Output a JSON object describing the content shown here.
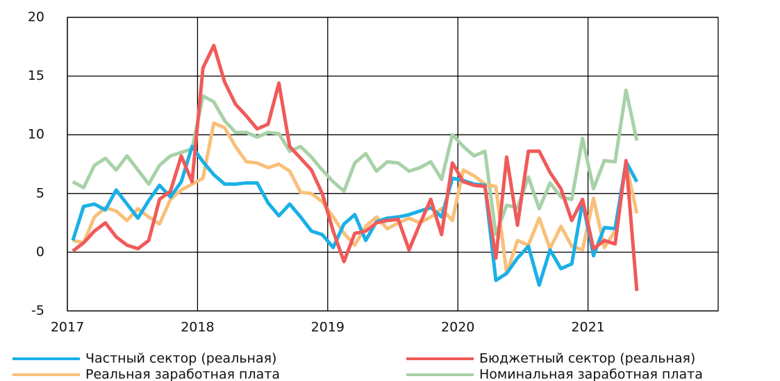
{
  "chart_data": {
    "type": "line",
    "x": [
      2017.042,
      2017.125,
      2017.208,
      2017.292,
      2017.375,
      2017.458,
      2017.542,
      2017.625,
      2017.708,
      2017.792,
      2017.875,
      2017.958,
      2018.042,
      2018.125,
      2018.208,
      2018.292,
      2018.375,
      2018.458,
      2018.542,
      2018.625,
      2018.708,
      2018.792,
      2018.875,
      2018.958,
      2019.042,
      2019.125,
      2019.208,
      2019.292,
      2019.375,
      2019.458,
      2019.542,
      2019.625,
      2019.708,
      2019.792,
      2019.875,
      2019.958,
      2020.042,
      2020.125,
      2020.208,
      2020.292,
      2020.375,
      2020.458,
      2020.542,
      2020.625,
      2020.708,
      2020.792,
      2020.875,
      2020.958,
      2021.042,
      2021.125,
      2021.208,
      2021.292,
      2021.375
    ],
    "series": [
      {
        "name": "Частный сектор (реальная)",
        "color": "#1ab0e6",
        "values": [
          1.0,
          3.9,
          4.1,
          3.6,
          5.3,
          4.1,
          2.9,
          4.4,
          5.7,
          4.7,
          6.0,
          9.0,
          7.7,
          6.6,
          5.8,
          5.8,
          5.9,
          5.9,
          4.2,
          3.1,
          4.1,
          3.0,
          1.8,
          1.5,
          0.4,
          2.4,
          3.2,
          1.0,
          2.6,
          2.9,
          3.0,
          3.2,
          3.5,
          3.8,
          3.0,
          6.3,
          6.1,
          5.8,
          5.7,
          -2.4,
          -1.8,
          -0.5,
          0.5,
          -2.8,
          0.2,
          -1.4,
          -1.0,
          4.3,
          -0.3,
          2.1,
          2.0,
          7.7,
          6.0
        ]
      },
      {
        "name": "Бюджетный сектор (реальная)",
        "color": "#f05a5a",
        "values": [
          0.1,
          0.8,
          1.8,
          2.5,
          1.3,
          0.6,
          0.3,
          1.0,
          4.5,
          5.2,
          8.2,
          6.0,
          15.7,
          17.6,
          14.5,
          12.6,
          11.6,
          10.5,
          10.9,
          14.4,
          9.0,
          8.0,
          7.0,
          5.0,
          1.8,
          -0.8,
          1.6,
          1.8,
          2.5,
          2.7,
          2.8,
          0.2,
          2.4,
          4.5,
          1.5,
          7.6,
          6.0,
          5.7,
          5.6,
          -0.5,
          8.1,
          2.3,
          8.6,
          8.6,
          6.8,
          5.4,
          2.7,
          4.5,
          0.3,
          1.0,
          0.7,
          7.8,
          -3.3
        ]
      },
      {
        "name": "Реальная заработная плата",
        "color": "#f9c07a",
        "values": [
          1.0,
          0.8,
          3.0,
          3.8,
          3.5,
          2.7,
          3.7,
          3.0,
          2.4,
          4.5,
          5.3,
          5.8,
          6.3,
          11.0,
          10.6,
          9.0,
          7.7,
          7.6,
          7.2,
          7.5,
          6.9,
          5.1,
          5.0,
          4.3,
          3.0,
          1.6,
          0.6,
          2.2,
          3.0,
          2.0,
          2.5,
          2.9,
          2.5,
          3.0,
          3.7,
          2.7,
          7.0,
          6.5,
          5.8,
          5.6,
          -1.8,
          1.0,
          0.6,
          2.9,
          0.3,
          2.2,
          0.5,
          0.2,
          4.6,
          0.4,
          1.8,
          7.6,
          3.3
        ]
      },
      {
        "name": "Номинальная заработная плата",
        "color": "#a8d1a8",
        "values": [
          6.0,
          5.5,
          7.4,
          8.0,
          7.0,
          8.2,
          7.0,
          5.8,
          7.4,
          8.2,
          8.5,
          8.8,
          13.3,
          12.8,
          11.2,
          10.2,
          10.2,
          9.8,
          10.2,
          10.1,
          8.6,
          9.0,
          8.1,
          7.0,
          6.0,
          5.2,
          7.6,
          8.4,
          6.9,
          7.7,
          7.6,
          6.9,
          7.2,
          7.7,
          6.2,
          10.0,
          9.0,
          8.2,
          8.6,
          1.5,
          4.0,
          3.8,
          6.4,
          3.7,
          5.9,
          4.7,
          4.5,
          9.7,
          5.4,
          7.8,
          7.7,
          13.8,
          9.5
        ]
      }
    ],
    "xlim": [
      2017,
      2022
    ],
    "xticks": [
      2017,
      2018,
      2019,
      2020,
      2021
    ],
    "ylim": [
      -5,
      20
    ],
    "yticks": [
      -5,
      0,
      5,
      10,
      15,
      20
    ],
    "grid": true
  }
}
